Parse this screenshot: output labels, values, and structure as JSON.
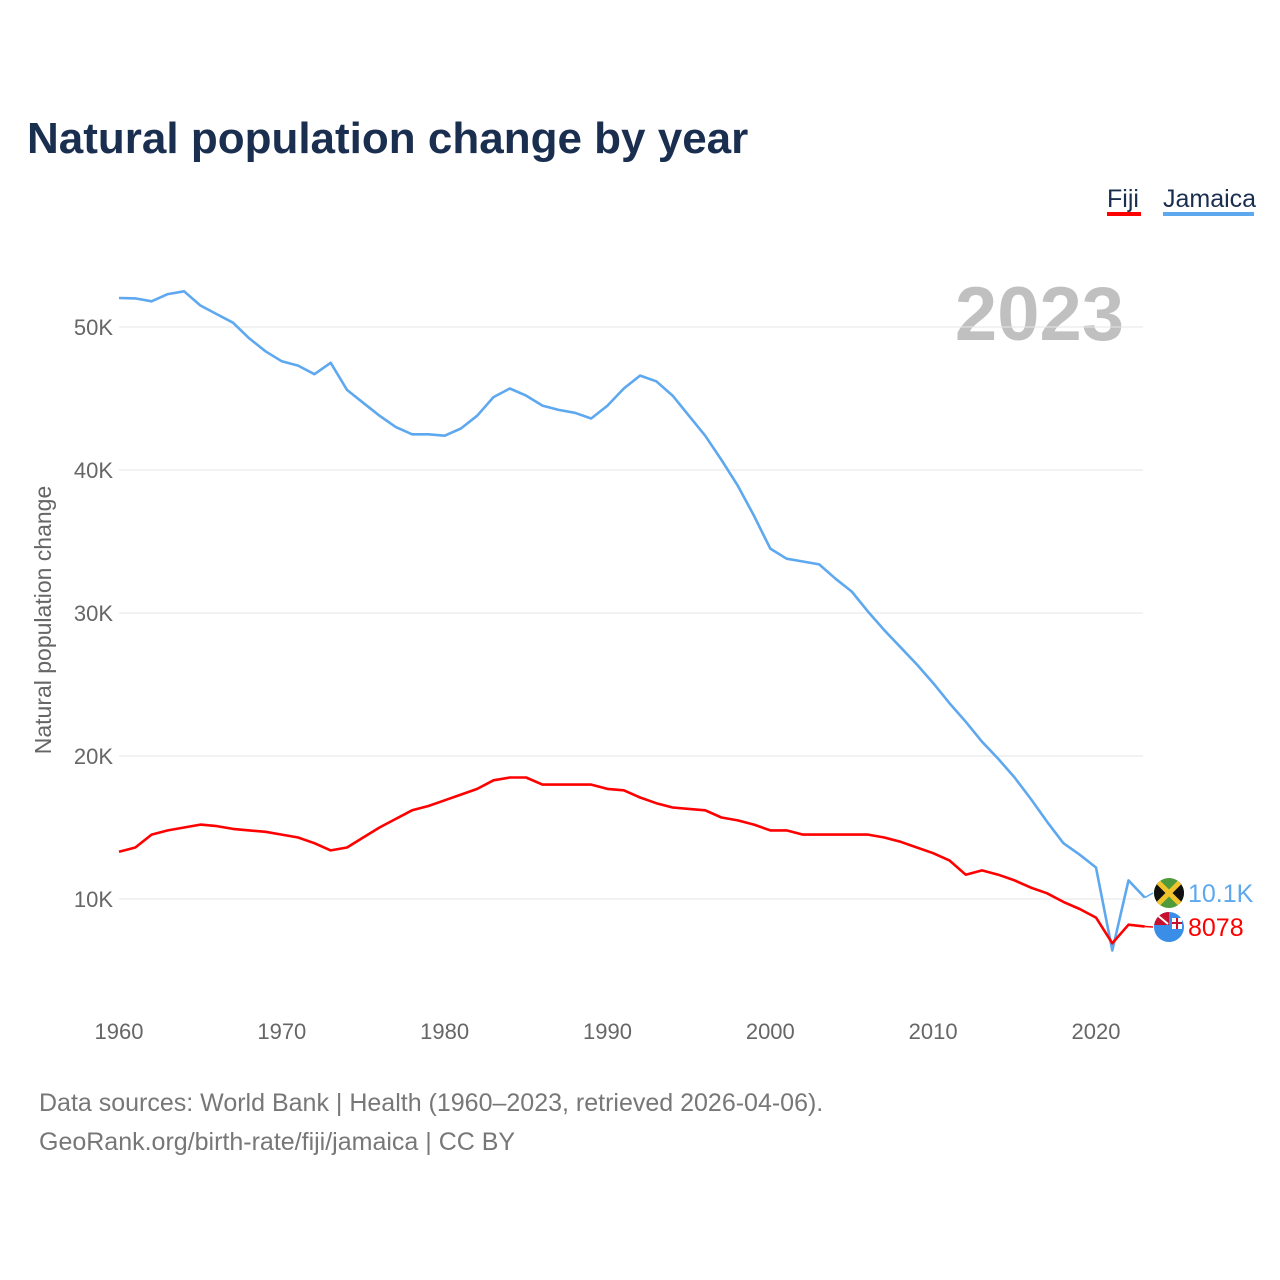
{
  "chart_data": {
    "type": "line",
    "title": "Natural population change by year",
    "ylabel": "Natural population change",
    "xlabel": "",
    "current_year": "2023",
    "xlim": [
      1960,
      2023
    ],
    "ylim": [
      0,
      55000
    ],
    "x_ticks": [
      1960,
      1970,
      1980,
      1990,
      2000,
      2010,
      2020
    ],
    "y_ticks": [
      10000,
      20000,
      30000,
      40000,
      50000
    ],
    "y_tick_labels": [
      "10K",
      "20K",
      "30K",
      "40K",
      "50K"
    ],
    "grid": true,
    "legend_position": "top-right",
    "x": [
      1960,
      1961,
      1962,
      1963,
      1964,
      1965,
      1966,
      1967,
      1968,
      1969,
      1970,
      1971,
      1972,
      1973,
      1974,
      1975,
      1976,
      1977,
      1978,
      1979,
      1980,
      1981,
      1982,
      1983,
      1984,
      1985,
      1986,
      1987,
      1988,
      1989,
      1990,
      1991,
      1992,
      1993,
      1994,
      1995,
      1996,
      1997,
      1998,
      1999,
      2000,
      2001,
      2002,
      2003,
      2004,
      2005,
      2006,
      2007,
      2008,
      2009,
      2010,
      2011,
      2012,
      2013,
      2014,
      2015,
      2016,
      2017,
      2018,
      2019,
      2020,
      2021,
      2022,
      2023
    ],
    "series": [
      {
        "name": "Fiji",
        "color": "#ff0000",
        "end_label": "8078",
        "values": [
          13300,
          13600,
          14500,
          14800,
          15000,
          15200,
          15100,
          14900,
          14800,
          14700,
          14500,
          14300,
          13900,
          13400,
          13600,
          14300,
          15000,
          15600,
          16200,
          16500,
          16900,
          17300,
          17700,
          18300,
          18500,
          18500,
          18000,
          18000,
          18000,
          18000,
          17700,
          17600,
          17100,
          16700,
          16400,
          16300,
          16200,
          15700,
          15500,
          15200,
          14800,
          14800,
          14500,
          14500,
          14500,
          14500,
          14500,
          14300,
          14000,
          13600,
          13200,
          12700,
          11700,
          12000,
          11700,
          11300,
          10800,
          10400,
          9800,
          9300,
          8700,
          6900,
          8200,
          8078
        ]
      },
      {
        "name": "Jamaica",
        "color": "#5ea8ef",
        "end_label": "10.1K",
        "values": [
          52030,
          52000,
          51800,
          52300,
          52500,
          51500,
          50900,
          50300,
          49200,
          48300,
          47600,
          47300,
          46700,
          47500,
          45600,
          44700,
          43800,
          43000,
          42500,
          42500,
          42400,
          42900,
          43800,
          45100,
          45700,
          45200,
          44500,
          44200,
          44000,
          43600,
          44500,
          45700,
          46600,
          46200,
          45200,
          43800,
          42400,
          40700,
          38900,
          36800,
          34500,
          33800,
          33600,
          33400,
          32400,
          31500,
          30100,
          28800,
          27600,
          26400,
          25100,
          23700,
          22400,
          21000,
          19800,
          18500,
          17000,
          15400,
          13900,
          13100,
          12200,
          6400,
          11300,
          10100
        ]
      }
    ]
  },
  "footer": {
    "line1": "Data sources: World Bank | Health (1960–2023, retrieved 2026-04-06).",
    "line2": "GeoRank.org/birth-rate/fiji/jamaica | CC BY"
  }
}
